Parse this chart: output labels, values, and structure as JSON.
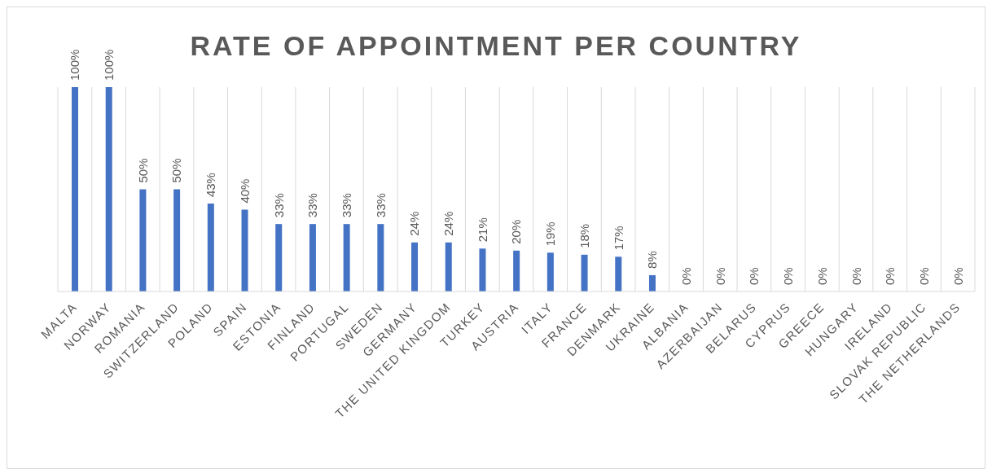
{
  "chart_data": {
    "type": "bar",
    "title": "RATE OF APPOINTMENT PER COUNTRY",
    "categories": [
      "MALTA",
      "NORWAY",
      "ROMANIA",
      "SWITZERLAND",
      "POLAND",
      "SPAIN",
      "ESTONIA",
      "FINLAND",
      "PORTUGAL",
      "SWEDEN",
      "GERMANY",
      "THE UNITED KINGDOM",
      "TURKEY",
      "AUSTRIA",
      "ITALY",
      "FRANCE",
      "DENMARK",
      "UKRAINE",
      "ALBANIA",
      "AZERBAIJAN",
      "BELARUS",
      "CYPRUS",
      "GREECE",
      "HUNGARY",
      "IRELAND",
      "SLOVAK REPUBLIC",
      "THE NETHERLANDS"
    ],
    "values": [
      100,
      100,
      50,
      50,
      43,
      40,
      33,
      33,
      33,
      33,
      24,
      24,
      21,
      20,
      19,
      18,
      17,
      8,
      0,
      0,
      0,
      0,
      0,
      0,
      0,
      0,
      0
    ],
    "value_labels": [
      "100%",
      "100%",
      "50%",
      "50%",
      "43%",
      "40%",
      "33%",
      "33%",
      "33%",
      "33%",
      "24%",
      "24%",
      "21%",
      "20%",
      "19%",
      "18%",
      "17%",
      "8%",
      "0%",
      "0%",
      "0%",
      "0%",
      "0%",
      "0%",
      "0%",
      "0%",
      "0%"
    ],
    "color": "#4472c4",
    "grid": "x",
    "legend": false
  }
}
